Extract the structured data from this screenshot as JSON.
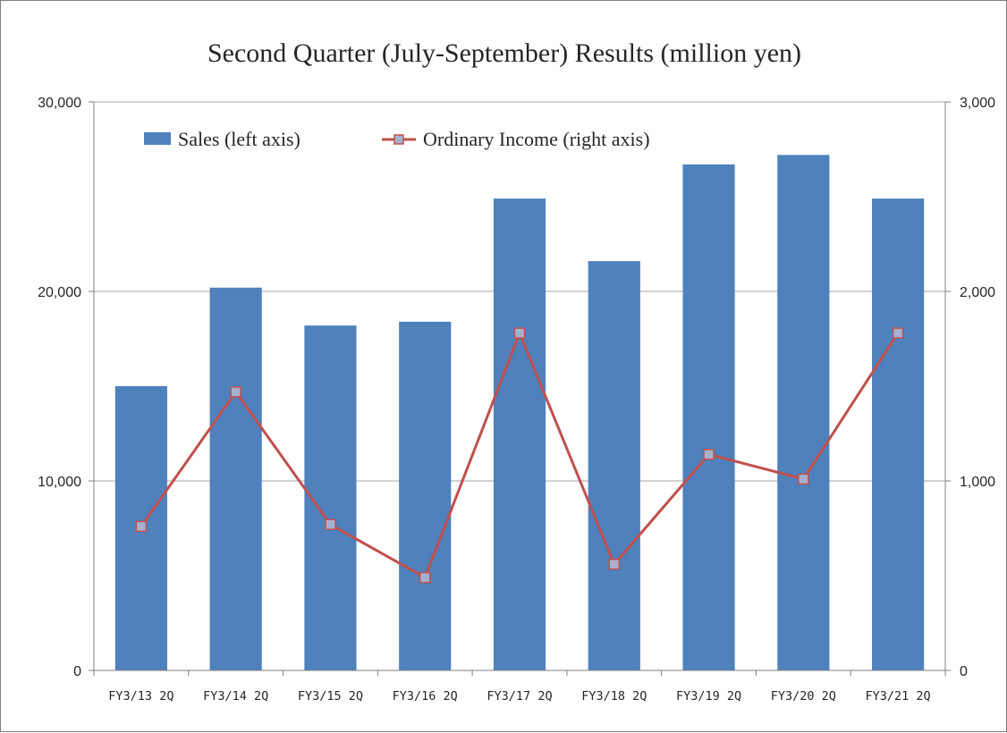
{
  "chart_data": {
    "type": "bar",
    "title": "Second Quarter (July-September) Results (million yen)",
    "categories": [
      "FY3/13 2Q",
      "FY3/14 2Q",
      "FY3/15 2Q",
      "FY3/16 2Q",
      "FY3/17 2Q",
      "FY3/18 2Q",
      "FY3/19 2Q",
      "FY3/20 2Q",
      "FY3/21 2Q"
    ],
    "series": [
      {
        "name": "Sales (left axis)",
        "type": "bar",
        "axis": "left",
        "color": "#4f81bd",
        "values": [
          15000,
          20200,
          18200,
          18400,
          24900,
          21600,
          26700,
          27200,
          24900
        ]
      },
      {
        "name": "Ordinary Income (right axis)",
        "type": "line",
        "axis": "right",
        "color": "#c0504d",
        "marker_color": "#a5b2cf",
        "values": [
          760,
          1470,
          770,
          490,
          1780,
          560,
          1140,
          1010,
          1780
        ]
      }
    ],
    "y_left": {
      "min": 0,
      "max": 30000,
      "ticks": [
        "0",
        "10,000",
        "20,000",
        "30,000"
      ]
    },
    "y_right": {
      "min": 0,
      "max": 3000,
      "ticks": [
        "0",
        "1,000",
        "2,000",
        "3,000"
      ]
    },
    "grid": true,
    "legend": "top-left"
  }
}
